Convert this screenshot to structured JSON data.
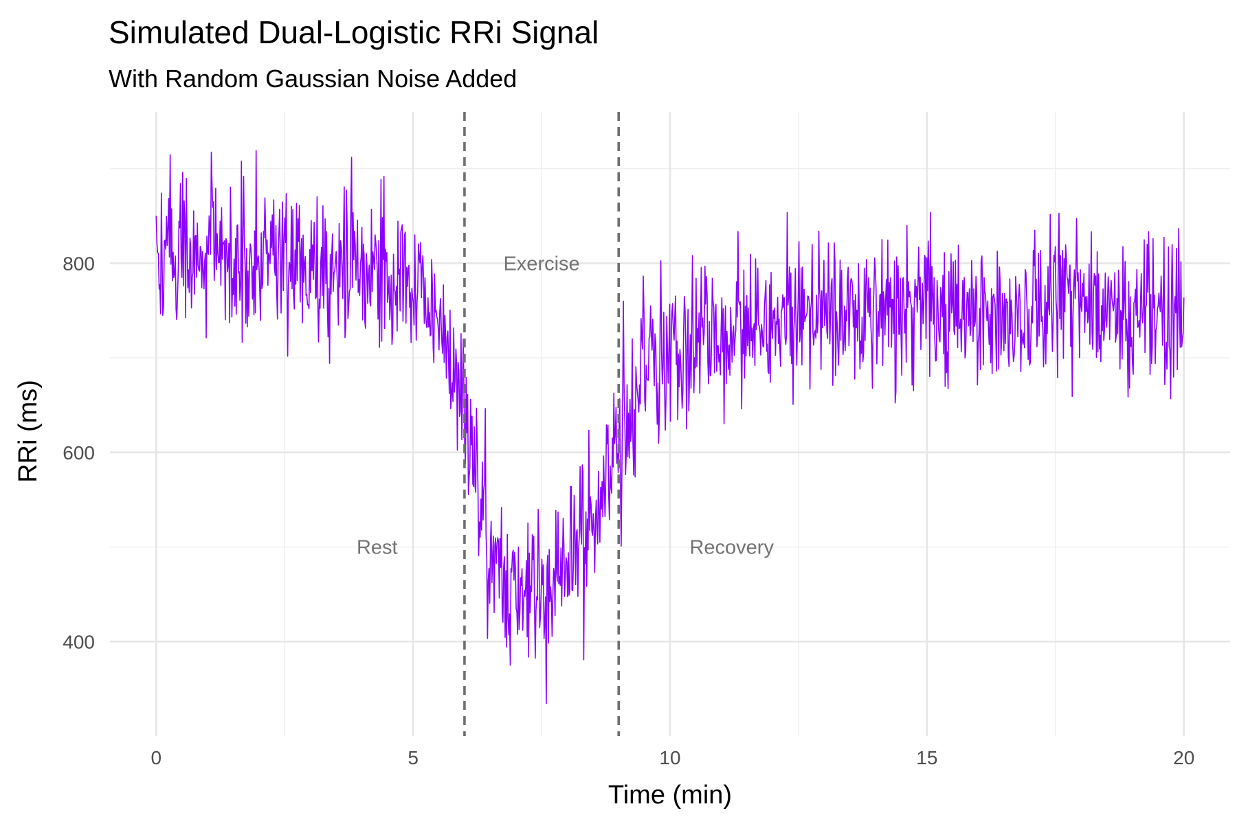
{
  "chart_data": {
    "type": "line",
    "title": "Simulated Dual-Logistic RRi Signal",
    "subtitle": "With Random Gaussian Noise Added",
    "xlabel": "Time (min)",
    "ylabel": "RRi (ms)",
    "xlim": [
      -0.9,
      20.9
    ],
    "ylim": [
      300,
      960
    ],
    "x_ticks": [
      0,
      5,
      10,
      15,
      20
    ],
    "y_ticks": [
      400,
      600,
      800
    ],
    "x_minor_ticks": [
      2.5,
      7.5,
      12.5,
      17.5
    ],
    "y_minor_ticks": [
      500,
      700,
      900
    ],
    "grid": true,
    "line_color": "#8B00FF",
    "series": [
      {
        "x": [
          0,
          0.5,
          1,
          1.5,
          2,
          2.5,
          3,
          3.5,
          4,
          4.5,
          5,
          5.25,
          5.5,
          5.75,
          6,
          6.25,
          6.5,
          6.75,
          7,
          7.25,
          7.5,
          7.75,
          8,
          8.25,
          8.5,
          8.75,
          9,
          9.25,
          9.5,
          9.75,
          10,
          10.5,
          11,
          12,
          13,
          14,
          15,
          16,
          17,
          18,
          19,
          20
        ],
        "y": [
          805,
          808,
          810,
          810,
          808,
          805,
          802,
          800,
          797,
          793,
          785,
          770,
          745,
          700,
          640,
          565,
          505,
          470,
          455,
          452,
          455,
          462,
          475,
          495,
          525,
          565,
          608,
          645,
          672,
          692,
          706,
          722,
          732,
          741,
          746,
          748,
          749,
          750,
          750,
          750,
          750,
          750
        ]
      }
    ],
    "noise_sd": 40,
    "samples": 1400,
    "vlines": [
      6,
      9
    ],
    "annotations": [
      {
        "label": "Rest",
        "x": 4.3,
        "y": 500
      },
      {
        "label": "Exercise",
        "x": 7.5,
        "y": 800
      },
      {
        "label": "Recovery",
        "x": 11.2,
        "y": 500
      }
    ]
  }
}
